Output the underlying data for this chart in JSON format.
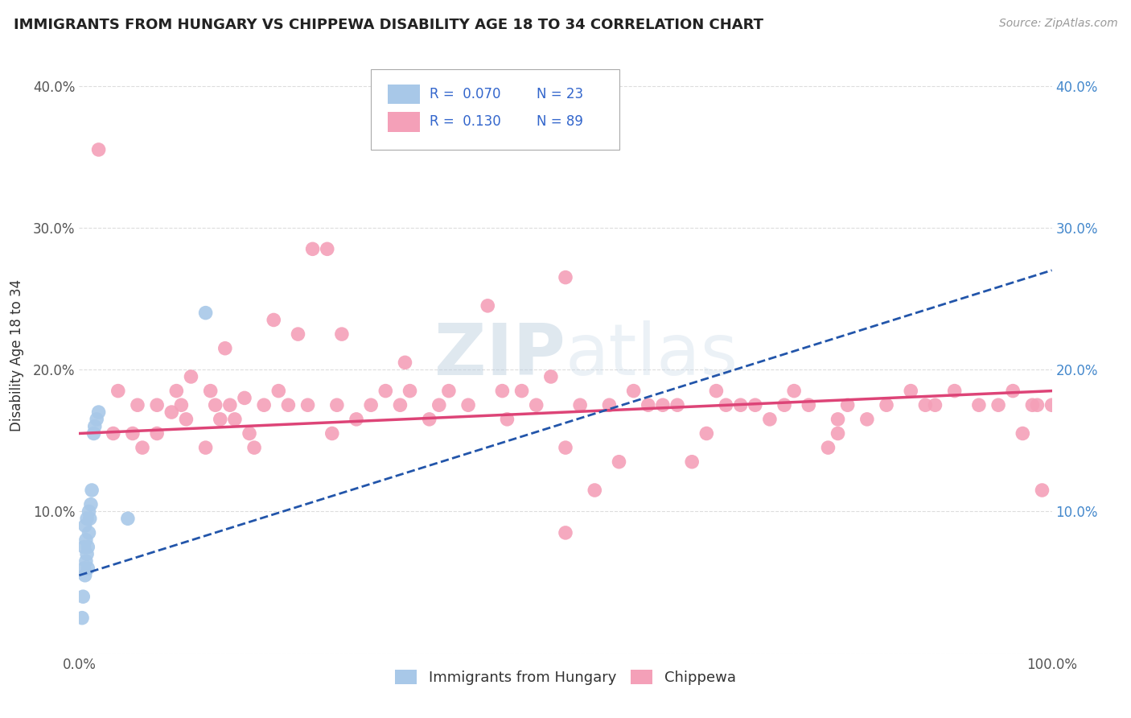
{
  "title": "IMMIGRANTS FROM HUNGARY VS CHIPPEWA DISABILITY AGE 18 TO 34 CORRELATION CHART",
  "source_text": "Source: ZipAtlas.com",
  "ylabel": "Disability Age 18 to 34",
  "xlim": [
    0.0,
    1.0
  ],
  "ylim": [
    0.0,
    0.42
  ],
  "series1_label": "Immigrants from Hungary",
  "series2_label": "Chippewa",
  "series1_color": "#a8c8e8",
  "series2_color": "#f4a0b8",
  "series1_line_color": "#2255aa",
  "series2_line_color": "#dd4477",
  "background_color": "#ffffff",
  "grid_color": "#dddddd",
  "title_color": "#222222",
  "legend_r1": "R =  0.070",
  "legend_n1": "N = 23",
  "legend_r2": "R =  0.130",
  "legend_n2": "N = 89",
  "series1_x": [
    0.003,
    0.004,
    0.005,
    0.005,
    0.006,
    0.006,
    0.007,
    0.007,
    0.008,
    0.008,
    0.009,
    0.009,
    0.01,
    0.01,
    0.011,
    0.012,
    0.013,
    0.015,
    0.016,
    0.018,
    0.02,
    0.05,
    0.13
  ],
  "series1_y": [
    0.025,
    0.04,
    0.06,
    0.075,
    0.055,
    0.09,
    0.065,
    0.08,
    0.07,
    0.095,
    0.06,
    0.075,
    0.085,
    0.1,
    0.095,
    0.105,
    0.115,
    0.155,
    0.16,
    0.165,
    0.17,
    0.095,
    0.24
  ],
  "series2_x": [
    0.02,
    0.035,
    0.04,
    0.055,
    0.06,
    0.065,
    0.08,
    0.08,
    0.095,
    0.1,
    0.105,
    0.11,
    0.115,
    0.13,
    0.135,
    0.14,
    0.145,
    0.15,
    0.155,
    0.16,
    0.17,
    0.175,
    0.18,
    0.19,
    0.2,
    0.205,
    0.215,
    0.225,
    0.235,
    0.24,
    0.255,
    0.26,
    0.265,
    0.27,
    0.285,
    0.3,
    0.315,
    0.33,
    0.335,
    0.34,
    0.36,
    0.37,
    0.38,
    0.4,
    0.42,
    0.435,
    0.44,
    0.455,
    0.47,
    0.485,
    0.5,
    0.515,
    0.53,
    0.545,
    0.555,
    0.57,
    0.585,
    0.6,
    0.615,
    0.63,
    0.645,
    0.655,
    0.665,
    0.68,
    0.695,
    0.71,
    0.725,
    0.735,
    0.75,
    0.77,
    0.79,
    0.81,
    0.83,
    0.855,
    0.87,
    0.88,
    0.9,
    0.925,
    0.945,
    0.96,
    0.97,
    0.98,
    0.985,
    0.99,
    1.0,
    0.5,
    0.5,
    0.78,
    0.78
  ],
  "series2_y": [
    0.355,
    0.155,
    0.185,
    0.155,
    0.175,
    0.145,
    0.175,
    0.155,
    0.17,
    0.185,
    0.175,
    0.165,
    0.195,
    0.145,
    0.185,
    0.175,
    0.165,
    0.215,
    0.175,
    0.165,
    0.18,
    0.155,
    0.145,
    0.175,
    0.235,
    0.185,
    0.175,
    0.225,
    0.175,
    0.285,
    0.285,
    0.155,
    0.175,
    0.225,
    0.165,
    0.175,
    0.185,
    0.175,
    0.205,
    0.185,
    0.165,
    0.175,
    0.185,
    0.175,
    0.245,
    0.185,
    0.165,
    0.185,
    0.175,
    0.195,
    0.085,
    0.175,
    0.115,
    0.175,
    0.135,
    0.185,
    0.175,
    0.175,
    0.175,
    0.135,
    0.155,
    0.185,
    0.175,
    0.175,
    0.175,
    0.165,
    0.175,
    0.185,
    0.175,
    0.145,
    0.175,
    0.165,
    0.175,
    0.185,
    0.175,
    0.175,
    0.185,
    0.175,
    0.175,
    0.185,
    0.155,
    0.175,
    0.175,
    0.115,
    0.175,
    0.265,
    0.145,
    0.155,
    0.165
  ],
  "trend1_x0": 0.0,
  "trend1_y0": 0.055,
  "trend1_x1": 1.0,
  "trend1_y1": 0.27,
  "trend2_x0": 0.0,
  "trend2_y0": 0.155,
  "trend2_x1": 1.0,
  "trend2_y1": 0.185
}
